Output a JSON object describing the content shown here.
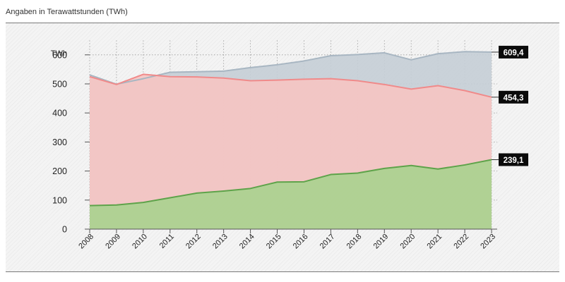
{
  "header": {
    "subtitle": "Angaben in Terawattstunden (TWh)"
  },
  "chart_data": {
    "type": "area",
    "ylabel": "TWh",
    "ylim": [
      0,
      650
    ],
    "yticks": [
      0,
      100,
      200,
      300,
      400,
      500,
      600
    ],
    "grid": "dotted",
    "x": [
      "2008",
      "2009",
      "2010",
      "2011",
      "2012",
      "2013",
      "2014",
      "2015",
      "2016",
      "2017",
      "2018",
      "2019",
      "2020",
      "2021",
      "2022",
      "2023"
    ],
    "series": [
      {
        "color": "#a8b6c2",
        "fill": "#c5ced6",
        "values": [
          531,
          499,
          518,
          540,
          542,
          544,
          556,
          566,
          579,
          597,
          601,
          607,
          583,
          604,
          611,
          609.4
        ],
        "end_label": "609,4"
      },
      {
        "color": "#f08a8a",
        "fill": "#f6c4c2",
        "values": [
          525,
          498,
          533,
          525,
          524,
          520,
          511,
          513,
          516,
          518,
          511,
          498,
          482,
          494,
          477,
          454.3
        ],
        "end_label": "454,3"
      },
      {
        "color": "#5ea34a",
        "fill": "#a9d18e",
        "values": [
          81,
          83,
          92,
          108,
          124,
          131,
          140,
          162,
          163,
          188,
          193,
          209,
          219,
          207,
          221,
          239.1
        ],
        "end_label": "239,1"
      }
    ]
  }
}
